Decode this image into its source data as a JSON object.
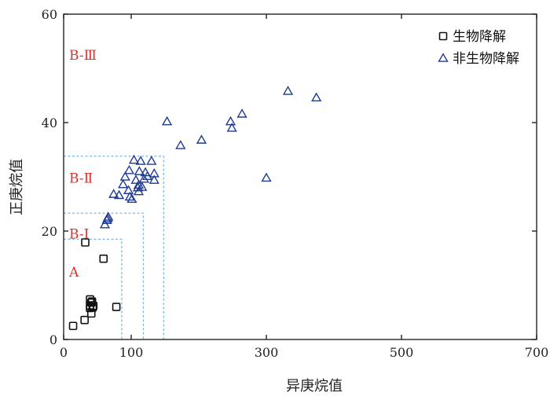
{
  "chart_data": {
    "type": "scatter",
    "title": "",
    "xlabel": "异庚烷值",
    "ylabel": "正庚烷值",
    "xlim": [
      0,
      700
    ],
    "ylim": [
      0,
      60
    ],
    "x_ticks": [
      0,
      100,
      300,
      500,
      700
    ],
    "x_tick_labels": [
      "0",
      "100",
      "300",
      "500",
      "700"
    ],
    "y_ticks": [
      0,
      20,
      40,
      60
    ],
    "y_tick_labels": [
      "0",
      "20",
      "40",
      "60"
    ],
    "grid": false,
    "legend_position": "top-right",
    "zone_labels": [
      {
        "text": "A",
        "x": 14,
        "y": 12.5
      },
      {
        "text": "B-Ⅰ",
        "x": 14,
        "y": 19.5
      },
      {
        "text": "B-Ⅱ",
        "x": 14,
        "y": 29.8
      },
      {
        "text": "B-Ⅲ",
        "x": 14,
        "y": 52.5
      }
    ],
    "zones": [
      {
        "xmax": 86,
        "ymax": 18.5
      },
      {
        "xmax": 118,
        "ymax": 23.3
      },
      {
        "xmax": 148,
        "ymax": 33.8
      }
    ],
    "series": [
      {
        "name": "生物降解",
        "marker": "square",
        "color": "#111111",
        "points": [
          [
            14,
            2.5
          ],
          [
            31,
            3.6
          ],
          [
            39,
            5.8
          ],
          [
            41,
            4.8
          ],
          [
            39,
            6.3
          ],
          [
            41,
            6.8
          ],
          [
            39,
            7.4
          ],
          [
            43,
            5.9
          ],
          [
            44,
            6.2
          ],
          [
            42,
            7.0
          ],
          [
            78,
            6.0
          ],
          [
            32,
            17.9
          ],
          [
            59,
            14.9
          ]
        ]
      },
      {
        "name": "非生物降解",
        "marker": "triangle",
        "color": "#1f3a93",
        "points": [
          [
            61,
            21.2
          ],
          [
            64,
            22.0
          ],
          [
            66,
            22.6
          ],
          [
            65,
            22.3
          ],
          [
            74,
            26.8
          ],
          [
            82,
            26.6
          ],
          [
            88,
            28.6
          ],
          [
            91,
            30.0
          ],
          [
            97,
            31.2
          ],
          [
            96,
            27.5
          ],
          [
            98,
            26.3
          ],
          [
            101,
            25.9
          ],
          [
            104,
            33.1
          ],
          [
            107,
            29.4
          ],
          [
            110,
            28.0
          ],
          [
            111,
            27.3
          ],
          [
            112,
            31.0
          ],
          [
            114,
            32.9
          ],
          [
            116,
            28.1
          ],
          [
            119,
            29.6
          ],
          [
            121,
            30.8
          ],
          [
            124,
            30.1
          ],
          [
            130,
            32.9
          ],
          [
            134,
            30.6
          ],
          [
            134,
            29.4
          ],
          [
            111,
            28.5
          ],
          [
            153,
            40.2
          ],
          [
            173,
            35.8
          ],
          [
            204,
            36.8
          ],
          [
            247,
            40.2
          ],
          [
            249,
            39.0
          ],
          [
            264,
            41.6
          ],
          [
            300,
            29.8
          ],
          [
            332,
            45.8
          ],
          [
            374,
            44.6
          ]
        ]
      }
    ]
  }
}
